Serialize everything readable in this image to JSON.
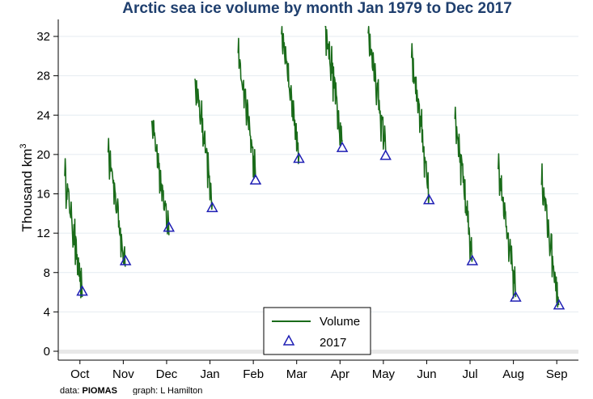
{
  "chart_data": {
    "type": "line",
    "title": "Arctic sea ice volume by month Jan 1979 to Dec 2017",
    "ylabel": "Thousand km",
    "ylabel_superscript": "3",
    "xlabel": "",
    "ylim": [
      0,
      33
    ],
    "yticks": [
      0,
      4,
      8,
      12,
      16,
      20,
      24,
      28,
      32
    ],
    "grid": true,
    "legend_position": "bottom-center",
    "categories": [
      "Oct",
      "Nov",
      "Dec",
      "Jan",
      "Feb",
      "Mar",
      "Apr",
      "May",
      "Jun",
      "Jul",
      "Aug",
      "Sep"
    ],
    "series": [
      {
        "name": "Volume",
        "kind": "line",
        "color": "#1a6b1a",
        "segments": [
          {
            "month": "Oct",
            "start": 17.8,
            "end": 5.5
          },
          {
            "month": "Nov",
            "start": 20.2,
            "end": 8.6
          },
          {
            "month": "Dec",
            "start": 23.3,
            "end": 11.8
          },
          {
            "month": "Jan",
            "start": 27.7,
            "end": 15.0
          },
          {
            "month": "Feb",
            "start": 30.3,
            "end": 17.7
          },
          {
            "month": "Mar",
            "start": 32.2,
            "end": 19.9
          },
          {
            "month": "Apr",
            "start": 33.0,
            "end": 21.3
          },
          {
            "month": "May",
            "start": 32.3,
            "end": 20.4
          },
          {
            "month": "Jun",
            "start": 29.8,
            "end": 15.8
          },
          {
            "month": "Jul",
            "start": 23.6,
            "end": 9.4
          },
          {
            "month": "Aug",
            "start": 18.5,
            "end": 5.5
          },
          {
            "month": "Sep",
            "start": 16.9,
            "end": 4.7
          }
        ]
      },
      {
        "name": "2017",
        "kind": "marker",
        "color": "#1f1fb4",
        "values": [
          6.1,
          9.2,
          12.6,
          14.6,
          17.4,
          19.6,
          20.7,
          19.9,
          15.4,
          9.2,
          5.5,
          4.7
        ]
      }
    ],
    "annotations": {
      "data_label": "data:",
      "data_source": "PIOMAS",
      "graph_label": "graph: L Hamilton"
    }
  },
  "colors": {
    "background": "#ffffff",
    "grid": "#e4ebf1",
    "title": "#1f3f6e",
    "volume_line": "#1a6b1a",
    "marker_2017": "#1f1fb4"
  }
}
